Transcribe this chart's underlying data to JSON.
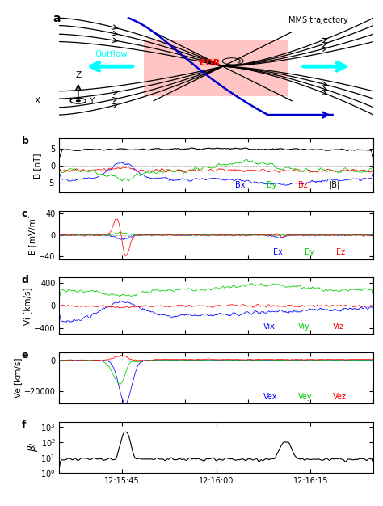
{
  "panel_labels": [
    "a",
    "b",
    "c",
    "d",
    "e",
    "f"
  ],
  "n_points": 600,
  "panel_b": {
    "ylabel": "B [nT]",
    "ylim": [
      -8,
      8
    ],
    "yticks": [
      -5,
      0,
      5
    ],
    "legend": [
      "Bx",
      "By",
      "Bz",
      "|B|"
    ],
    "colors": [
      "#0000ff",
      "#00cc00",
      "#ff0000",
      "#000000"
    ]
  },
  "panel_c": {
    "ylabel": "E [mV/m]",
    "ylim": [
      -45,
      45
    ],
    "yticks": [
      -40,
      0,
      40
    ],
    "legend": [
      "Ex",
      "Ey",
      "Ez"
    ],
    "colors": [
      "#0000ff",
      "#00cc00",
      "#ff0000"
    ]
  },
  "panel_d": {
    "ylabel": "Vi [km/s]",
    "ylim": [
      -500,
      500
    ],
    "yticks": [
      -400,
      0,
      400
    ],
    "legend": [
      "Vix",
      "Viy",
      "Viz"
    ],
    "colors": [
      "#0000ff",
      "#00cc00",
      "#ff0000"
    ]
  },
  "panel_e": {
    "ylabel": "Ve [km/s]",
    "ylim": [
      -28000,
      5000
    ],
    "yticks": [
      -20000,
      0
    ],
    "legend": [
      "Vex",
      "Vey",
      "Vez"
    ],
    "colors": [
      "#0000ff",
      "#00cc00",
      "#ff0000"
    ]
  },
  "panel_f": {
    "ylabel": "βi",
    "ylim_log": [
      1,
      2000
    ],
    "yticks_log": [
      1,
      10,
      100,
      1000
    ]
  },
  "xticks_pos": [
    20,
    50,
    80
  ],
  "xtick_labels": [
    "12:15:45",
    "12:16:00",
    "12:16:15"
  ],
  "edr_color": "#ffb0b0",
  "outflow_color": "#00ffff",
  "mms_color": "#0000cc"
}
